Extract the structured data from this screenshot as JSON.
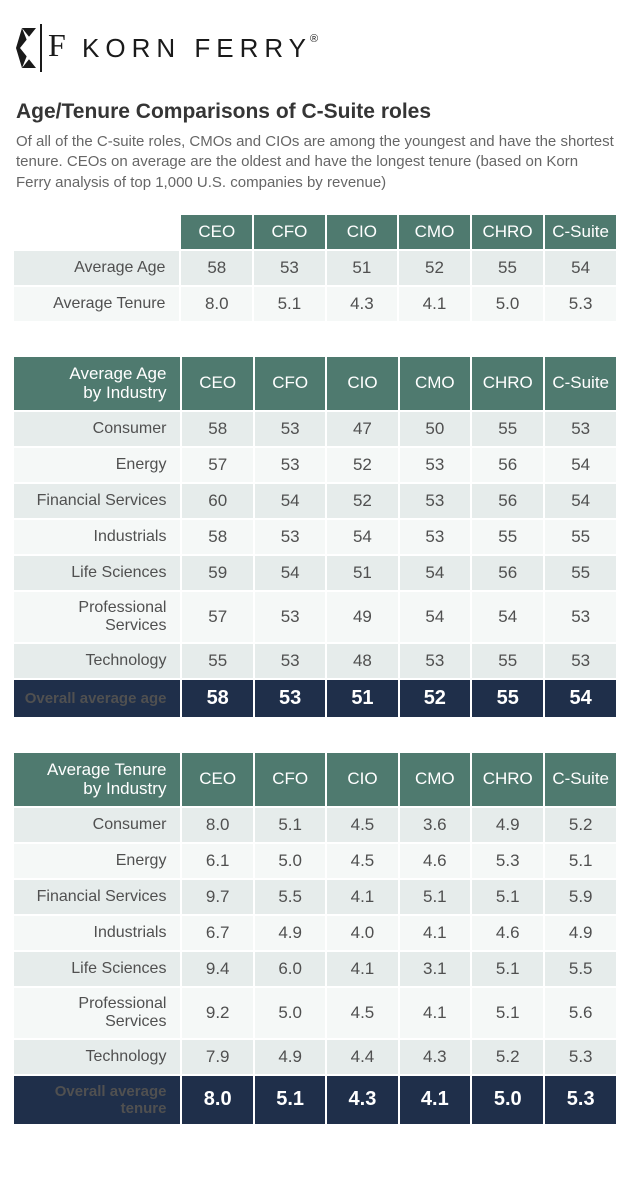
{
  "brand": {
    "name": "KORN FERRY"
  },
  "header": {
    "title": "Age/Tenure Comparisons of C-Suite roles",
    "subtitle": "Of all of the C-suite roles, CMOs and CIOs are among the youngest and have the shortest tenure. CEOs on average are the oldest and have the longest tenure (based on Korn Ferry analysis of top 1,000 U.S. companies by revenue)"
  },
  "columns": [
    "CEO",
    "CFO",
    "CIO",
    "CMO",
    "CHRO",
    "C-Suite"
  ],
  "colors": {
    "header_bg": "#4f7a6f",
    "header_fg": "#ffffff",
    "row_odd_bg": "#e6eceb",
    "row_even_bg": "#f5f8f7",
    "footer_bg": "#1f2f4a",
    "footer_fg": "#ffffff",
    "body_text": "#505050",
    "title_text": "#353535",
    "subtitle_text": "#666666"
  },
  "typography": {
    "title_fontsize": 21,
    "subtitle_fontsize": 15,
    "th_fontsize": 17,
    "td_fontsize": 17,
    "footer_label_fontsize": 15,
    "footer_val_fontsize": 20,
    "logo_letterspacing": 6
  },
  "table1": {
    "type": "table",
    "corner": "",
    "rows": [
      {
        "label": "Average Age",
        "values": [
          "58",
          "53",
          "51",
          "52",
          "55",
          "54"
        ]
      },
      {
        "label": "Average Tenure",
        "values": [
          "8.0",
          "5.1",
          "4.3",
          "4.1",
          "5.0",
          "5.3"
        ]
      }
    ]
  },
  "table2": {
    "type": "table",
    "corner": "Average Age\nby Industry",
    "rows": [
      {
        "label": "Consumer",
        "values": [
          "58",
          "53",
          "47",
          "50",
          "55",
          "53"
        ]
      },
      {
        "label": "Energy",
        "values": [
          "57",
          "53",
          "52",
          "53",
          "56",
          "54"
        ]
      },
      {
        "label": "Financial Services",
        "values": [
          "60",
          "54",
          "52",
          "53",
          "56",
          "54"
        ]
      },
      {
        "label": "Industrials",
        "values": [
          "58",
          "53",
          "54",
          "53",
          "55",
          "55"
        ]
      },
      {
        "label": "Life Sciences",
        "values": [
          "59",
          "54",
          "51",
          "54",
          "56",
          "55"
        ]
      },
      {
        "label": "Professional Services",
        "values": [
          "57",
          "53",
          "49",
          "54",
          "54",
          "53"
        ]
      },
      {
        "label": "Technology",
        "values": [
          "55",
          "53",
          "48",
          "53",
          "55",
          "53"
        ]
      }
    ],
    "footer": {
      "label": "Overall average age",
      "values": [
        "58",
        "53",
        "51",
        "52",
        "55",
        "54"
      ]
    }
  },
  "table3": {
    "type": "table",
    "corner": "Average Tenure\nby Industry",
    "rows": [
      {
        "label": "Consumer",
        "values": [
          "8.0",
          "5.1",
          "4.5",
          "3.6",
          "4.9",
          "5.2"
        ]
      },
      {
        "label": "Energy",
        "values": [
          "6.1",
          "5.0",
          "4.5",
          "4.6",
          "5.3",
          "5.1"
        ]
      },
      {
        "label": "Financial Services",
        "values": [
          "9.7",
          "5.5",
          "4.1",
          "5.1",
          "5.1",
          "5.9"
        ]
      },
      {
        "label": "Industrials",
        "values": [
          "6.7",
          "4.9",
          "4.0",
          "4.1",
          "4.6",
          "4.9"
        ]
      },
      {
        "label": "Life Sciences",
        "values": [
          "9.4",
          "6.0",
          "4.1",
          "3.1",
          "5.1",
          "5.5"
        ]
      },
      {
        "label": "Professional Services",
        "values": [
          "9.2",
          "5.0",
          "4.5",
          "4.1",
          "5.1",
          "5.6"
        ]
      },
      {
        "label": "Technology",
        "values": [
          "7.9",
          "4.9",
          "4.4",
          "4.3",
          "5.2",
          "5.3"
        ]
      }
    ],
    "footer": {
      "label": "Overall average tenure",
      "values": [
        "8.0",
        "5.1",
        "4.3",
        "4.1",
        "5.0",
        "5.3"
      ]
    }
  }
}
